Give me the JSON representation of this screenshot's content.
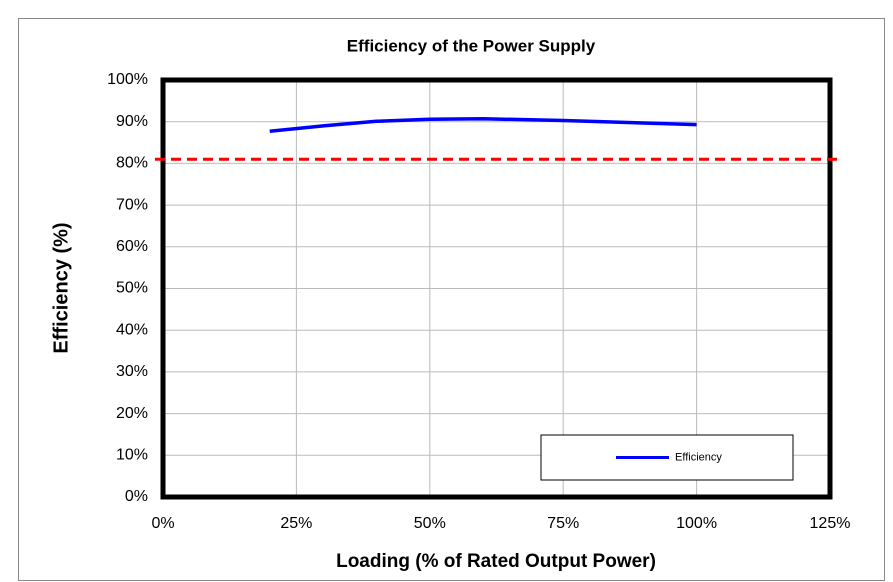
{
  "chart_data": {
    "type": "line",
    "title": "Efficiency of the Power Supply",
    "x_label": "Loading (% of Rated Output Power)",
    "y_label": "Efficiency (%)",
    "x": [
      20,
      30,
      40,
      50,
      60,
      75,
      100
    ],
    "series": [
      {
        "name": "Efficiency",
        "color": "#0000ff",
        "values": [
          87.7,
          89.0,
          90.1,
          90.6,
          90.7,
          90.3,
          89.3
        ]
      }
    ],
    "threshold": 81,
    "threshold_color": "#ff0000",
    "xlim": [
      0,
      125
    ],
    "xticks": [
      {
        "value": 0,
        "label": "0%"
      },
      {
        "value": 25,
        "label": "25%"
      },
      {
        "value": 50,
        "label": "50%"
      },
      {
        "value": 75,
        "label": "75%"
      },
      {
        "value": 100,
        "label": "100%"
      },
      {
        "value": 125,
        "label": "125%"
      }
    ],
    "ylim": [
      0,
      100
    ],
    "yticks": [
      {
        "value": 0,
        "label": "0%"
      },
      {
        "value": 10,
        "label": "10%"
      },
      {
        "value": 20,
        "label": "20%"
      },
      {
        "value": 30,
        "label": "30%"
      },
      {
        "value": 40,
        "label": "40%"
      },
      {
        "value": 50,
        "label": "50%"
      },
      {
        "value": 60,
        "label": "60%"
      },
      {
        "value": 70,
        "label": "70%"
      },
      {
        "value": 80,
        "label": "80%"
      },
      {
        "value": 90,
        "label": "90%"
      },
      {
        "value": 100,
        "label": "100%"
      }
    ],
    "grid": true,
    "legend": "lower right"
  }
}
